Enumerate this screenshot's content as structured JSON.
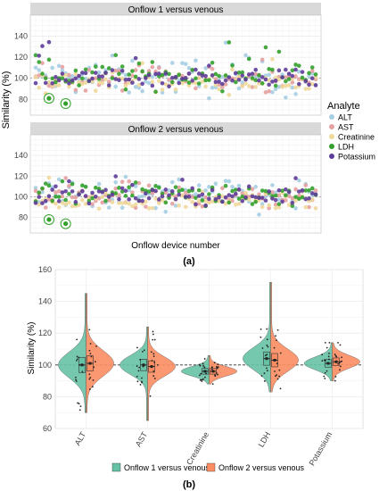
{
  "colors": {
    "ALT": "#a6cee3",
    "AST": "#e6a0a0",
    "Creatinine": "#eed89a",
    "LDH": "#33a02c",
    "Potassium": "#5e3c99",
    "panel_strip": "#d9d9d9",
    "grid": "#ebebeb",
    "onflow1": "#66c2a5",
    "onflow2": "#fc8d62"
  },
  "chart_data": [
    {
      "type": "scatter",
      "panels": [
        "Onflow 1 versus venous",
        "Onflow 2 versus venous"
      ],
      "xlabel": "Onflow device number",
      "ylabel": "Similarity (%)",
      "yticks": [
        80,
        100,
        120,
        140
      ],
      "ylim": [
        65,
        160
      ],
      "reference_line": 100,
      "legend_title": "Analyte",
      "legend_position": "right",
      "series": [
        {
          "name": "ALT"
        },
        {
          "name": "AST"
        },
        {
          "name": "Creatinine"
        },
        {
          "name": "LDH"
        },
        {
          "name": "Potassium"
        }
      ],
      "n_devices": 85,
      "circled_points": [
        {
          "panel": 0,
          "device": 4,
          "value": 81
        },
        {
          "panel": 0,
          "device": 9,
          "value": 76
        },
        {
          "panel": 1,
          "device": 4,
          "value": 78
        },
        {
          "panel": 1,
          "device": 9,
          "value": 74
        }
      ],
      "panel_label": "(a)"
    },
    {
      "type": "violin",
      "categories": [
        "ALT",
        "AST",
        "Creatinine",
        "LDH",
        "Potassium"
      ],
      "ylabel": "Similarity (%)",
      "yticks": [
        60,
        80,
        100,
        120,
        140,
        160
      ],
      "ylim": [
        60,
        160
      ],
      "reference_line": 100,
      "legend_position": "bottom",
      "series": [
        {
          "name": "Onflow 1 versus venous",
          "medians": [
            100,
            100,
            96,
            104,
            101
          ]
        },
        {
          "name": "Onflow 2 versus venous",
          "medians": [
            101,
            99,
            96,
            103,
            102
          ]
        }
      ],
      "panel_label": "(b)"
    }
  ]
}
